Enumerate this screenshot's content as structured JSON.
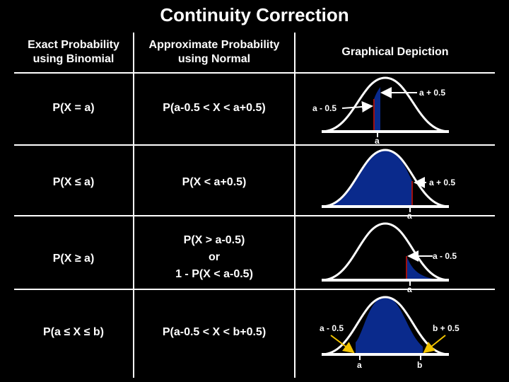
{
  "title": "Continuity Correction",
  "headers": {
    "col1": [
      "Exact Probability",
      "using Binomial"
    ],
    "col2": [
      "Approximate Probability",
      "using Normal"
    ],
    "col3": "Graphical Depiction"
  },
  "rows": [
    {
      "exact": "P(X = a)",
      "approx": [
        "P(a-0.5 < X < a+0.5)"
      ],
      "labels": {
        "a_plus": "a + 0.5",
        "a_minus": "a - 0.5",
        "a": "a"
      }
    },
    {
      "exact": "P(X ≤ a)",
      "approx": [
        "P(X < a+0.5)"
      ],
      "labels": {
        "a_plus": "a + 0.5",
        "a": "a"
      }
    },
    {
      "exact": "P(X ≥ a)",
      "approx": [
        "P(X > a-0.5)",
        "or",
        "1 - P(X < a-0.5)"
      ],
      "labels": {
        "a_minus": "a - 0.5",
        "a": "a"
      }
    },
    {
      "exact": "P(a ≤ X ≤ b)",
      "approx": [
        "P(a-0.5 < X < b+0.5)"
      ],
      "labels": {
        "a_minus": "a - 0.5",
        "b_plus": "b + 0.5",
        "a": "a",
        "b": "b"
      }
    }
  ],
  "colors": {
    "fill": "#0a2a8c",
    "edge": "#a01010",
    "arrow": "#f2c400"
  }
}
